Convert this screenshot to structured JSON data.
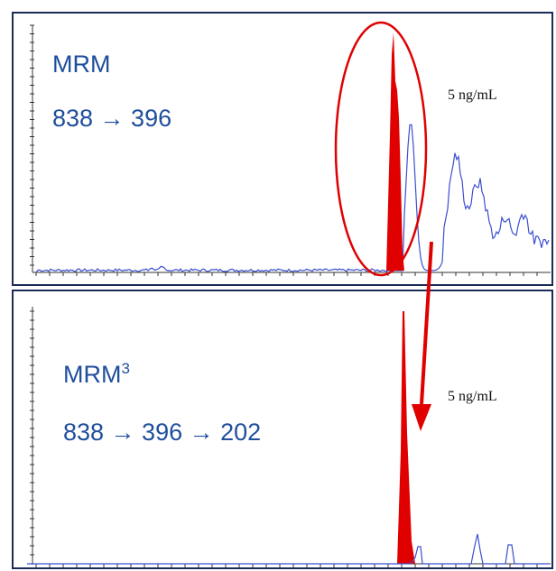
{
  "panels": [
    {
      "label": "MRM",
      "transition": "838 → 396",
      "concentration": "5 ng/mL"
    },
    {
      "label": "MRM",
      "label_superscript": "3",
      "transition": "838 → 396 → 202",
      "concentration": "5 ng/mL"
    }
  ]
}
